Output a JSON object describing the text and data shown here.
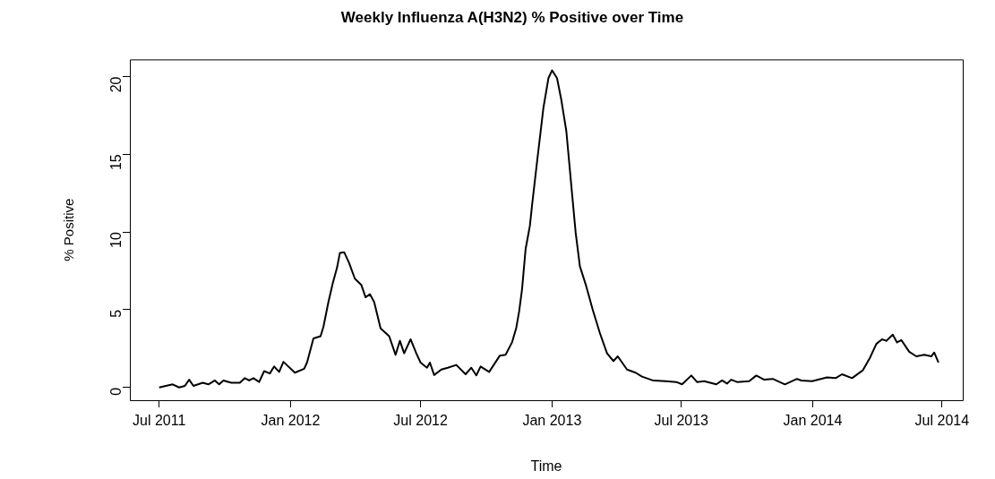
{
  "chart_data": {
    "type": "line",
    "title": "Weekly Influenza A(H3N2) % Positive over Time",
    "xlabel": "Time",
    "ylabel": "% Positive",
    "x": [
      "2011-07-01",
      "2011-07-20",
      "2011-07-29",
      "2011-08-06",
      "2011-08-12",
      "2011-08-18",
      "2011-08-31",
      "2011-09-08",
      "2011-09-17",
      "2011-09-23",
      "2011-09-29",
      "2011-10-10",
      "2011-10-22",
      "2011-10-29",
      "2011-11-04",
      "2011-11-10",
      "2011-11-18",
      "2011-11-25",
      "2011-12-03",
      "2011-12-09",
      "2011-12-16",
      "2011-12-22",
      "2012-01-07",
      "2012-01-20",
      "2012-01-24",
      "2012-02-02",
      "2012-02-12",
      "2012-02-16",
      "2012-02-23",
      "2012-02-29",
      "2012-03-06",
      "2012-03-10",
      "2012-03-16",
      "2012-03-23",
      "2012-03-31",
      "2012-04-09",
      "2012-04-15",
      "2012-04-21",
      "2012-04-27",
      "2012-05-06",
      "2012-05-18",
      "2012-05-27",
      "2012-06-02",
      "2012-06-08",
      "2012-06-17",
      "2012-06-25",
      "2012-07-01",
      "2012-07-10",
      "2012-07-14",
      "2012-07-20",
      "2012-07-30",
      "2012-08-08",
      "2012-08-20",
      "2012-09-02",
      "2012-09-10",
      "2012-09-17",
      "2012-09-23",
      "2012-10-05",
      "2012-10-20",
      "2012-10-28",
      "2012-11-06",
      "2012-11-12",
      "2012-11-16",
      "2012-11-20",
      "2012-11-25",
      "2012-12-01",
      "2012-12-04",
      "2012-12-11",
      "2012-12-20",
      "2012-12-27",
      "2013-01-01",
      "2013-01-08",
      "2013-01-14",
      "2013-01-21",
      "2013-01-28",
      "2013-02-03",
      "2013-02-09",
      "2013-02-18",
      "2013-02-27",
      "2013-03-09",
      "2013-03-19",
      "2013-03-28",
      "2013-04-03",
      "2013-04-16",
      "2013-04-28",
      "2013-05-07",
      "2013-05-23",
      "2013-06-09",
      "2013-06-24",
      "2013-07-02",
      "2013-07-15",
      "2013-07-23",
      "2013-08-02",
      "2013-08-19",
      "2013-08-27",
      "2013-09-03",
      "2013-09-09",
      "2013-09-17",
      "2013-10-04",
      "2013-10-14",
      "2013-10-25",
      "2013-11-06",
      "2013-11-23",
      "2013-12-10",
      "2013-12-16",
      "2013-12-31",
      "2014-01-21",
      "2014-02-02",
      "2014-02-11",
      "2014-02-25",
      "2014-03-12",
      "2014-03-22",
      "2014-03-31",
      "2014-04-08",
      "2014-04-14",
      "2014-04-23",
      "2014-04-29",
      "2014-05-05",
      "2014-05-16",
      "2014-05-26",
      "2014-06-06",
      "2014-06-16",
      "2014-06-20",
      "2014-06-26"
    ],
    "values": [
      0,
      0.2,
      0,
      0.1,
      0.5,
      0.1,
      0.3,
      0.2,
      0.45,
      0.2,
      0.45,
      0.3,
      0.3,
      0.6,
      0.45,
      0.6,
      0.35,
      1.05,
      0.9,
      1.35,
      1.0,
      1.65,
      0.95,
      1.2,
      1.6,
      3.15,
      3.3,
      3.9,
      5.5,
      6.7,
      7.7,
      8.65,
      8.7,
      8.0,
      7.0,
      6.6,
      5.8,
      6.0,
      5.5,
      3.8,
      3.3,
      2.1,
      3.0,
      2.2,
      3.1,
      2.2,
      1.6,
      1.27,
      1.6,
      0.8,
      1.15,
      1.27,
      1.45,
      0.85,
      1.27,
      0.78,
      1.35,
      1.0,
      2.05,
      2.1,
      2.9,
      3.85,
      4.9,
      6.3,
      8.9,
      10.4,
      11.7,
      14.5,
      18.0,
      19.9,
      20.4,
      19.9,
      18.5,
      16.5,
      13.0,
      10.0,
      7.8,
      6.5,
      5.0,
      3.5,
      2.2,
      1.7,
      2.0,
      1.15,
      0.95,
      0.7,
      0.44,
      0.4,
      0.35,
      0.2,
      0.77,
      0.35,
      0.4,
      0.2,
      0.45,
      0.25,
      0.5,
      0.35,
      0.4,
      0.77,
      0.5,
      0.55,
      0.2,
      0.55,
      0.45,
      0.4,
      0.65,
      0.6,
      0.85,
      0.6,
      1.1,
      1.9,
      2.8,
      3.1,
      3.0,
      3.4,
      2.9,
      3.05,
      2.3,
      2.0,
      2.1,
      2.0,
      2.25,
      1.6
    ],
    "color": "#000000",
    "marker": "none",
    "line_style": "solid",
    "grid": false,
    "legend": false,
    "xlim": [
      "2011-05-21",
      "2014-07-30"
    ],
    "ylim": [
      -0.82,
      21.1
    ],
    "xticks": [
      {
        "value": "2011-07-01",
        "label": "Jul 2011"
      },
      {
        "value": "2012-01-01",
        "label": "Jan 2012"
      },
      {
        "value": "2012-07-01",
        "label": "Jul 2012"
      },
      {
        "value": "2013-01-01",
        "label": "Jan 2013"
      },
      {
        "value": "2013-07-01",
        "label": "Jul 2013"
      },
      {
        "value": "2014-01-01",
        "label": "Jan 2014"
      },
      {
        "value": "2014-07-01",
        "label": "Jul 2014"
      }
    ],
    "yticks": [
      0,
      5,
      10,
      15,
      20
    ]
  }
}
